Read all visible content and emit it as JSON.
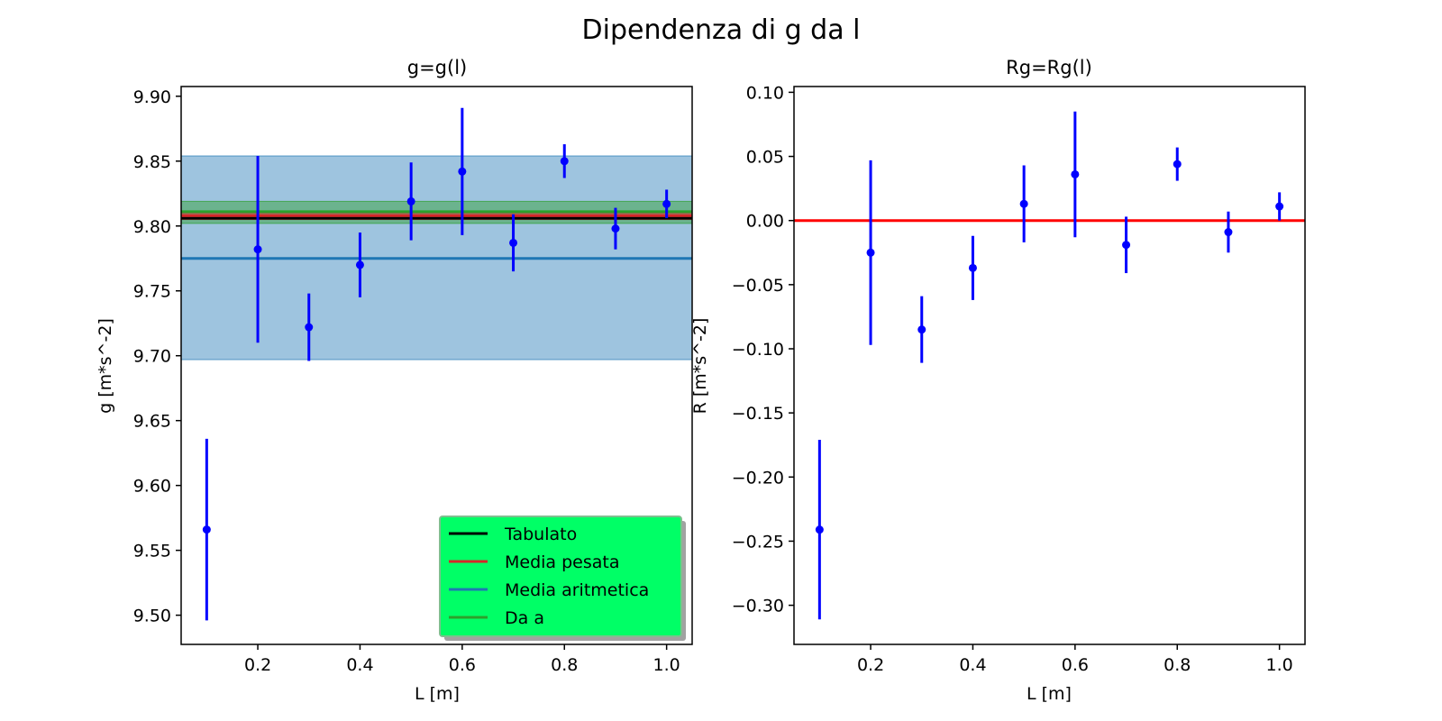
{
  "figure": {
    "title": "Dipendenza di g da l"
  },
  "chart_data": [
    {
      "type": "scatter",
      "title": "g=g(l)",
      "xlabel": "L [m]",
      "ylabel": "g [m*s^-2]",
      "xlim": [
        0.05,
        1.05
      ],
      "ylim": [
        9.4775,
        9.9075
      ],
      "xticks": [
        0.2,
        0.4,
        0.6,
        0.8,
        1.0
      ],
      "xtick_labels": [
        "0.2",
        "0.4",
        "0.6",
        "0.8",
        "1.0"
      ],
      "yticks": [
        9.5,
        9.55,
        9.6,
        9.65,
        9.7,
        9.75,
        9.8,
        9.85,
        9.9
      ],
      "ytick_labels": [
        "9.50",
        "9.55",
        "9.60",
        "9.65",
        "9.70",
        "9.75",
        "9.80",
        "9.85",
        "9.90"
      ],
      "grid": false,
      "legend_position": "lower right",
      "bands": [
        {
          "name": "Media aritmetica",
          "low": 9.697,
          "high": 9.854,
          "color": "#1f77b4",
          "opacity": 0.43
        },
        {
          "name": "Da a",
          "low": 9.802,
          "high": 9.819,
          "color": "#2ca02c",
          "opacity": 0.45
        },
        {
          "name": "Media pesata",
          "low": 9.805,
          "high": 9.81,
          "color": "#d62728",
          "opacity": 0.35
        }
      ],
      "lines": [
        {
          "name": "Tabulato",
          "y": 9.806,
          "color": "#000000"
        },
        {
          "name": "Media pesata",
          "y": 9.808,
          "color": "#d62728"
        },
        {
          "name": "Media aritmetica",
          "y": 9.775,
          "color": "#1f77b4"
        },
        {
          "name": "Da a",
          "y": 9.811,
          "color": "#2ca02c"
        }
      ],
      "series": [
        {
          "color": "#0000ff",
          "x": [
            0.1,
            0.2,
            0.3,
            0.4,
            0.5,
            0.6,
            0.7,
            0.8,
            0.9,
            1.0
          ],
          "y": [
            9.566,
            9.782,
            9.722,
            9.77,
            9.819,
            9.842,
            9.787,
            9.85,
            9.798,
            9.817
          ],
          "yerr": [
            0.07,
            0.072,
            0.026,
            0.025,
            0.03,
            0.049,
            0.022,
            0.013,
            0.016,
            0.011
          ]
        }
      ],
      "legend": [
        {
          "label": "Tabulato",
          "color": "#000000"
        },
        {
          "label": "Media pesata",
          "color": "#d62728"
        },
        {
          "label": "Media aritmetica",
          "color": "#1f77b4"
        },
        {
          "label": "Da a",
          "color": "#2ca02c"
        }
      ],
      "legend_style": {
        "facecolor": "#00ff66",
        "edgecolor": "#7fbf8f",
        "shadow": true
      }
    },
    {
      "type": "scatter",
      "title": "Rg=Rg(l)",
      "xlabel": "L [m]",
      "ylabel": "R [m*s^-2]",
      "xlim": [
        0.05,
        1.05
      ],
      "ylim": [
        -0.3305,
        0.1045
      ],
      "xticks": [
        0.2,
        0.4,
        0.6,
        0.8,
        1.0
      ],
      "xtick_labels": [
        "0.2",
        "0.4",
        "0.6",
        "0.8",
        "1.0"
      ],
      "yticks": [
        -0.3,
        -0.25,
        -0.2,
        -0.15,
        -0.1,
        -0.05,
        0.0,
        0.05,
        0.1
      ],
      "ytick_labels": [
        "−0.30",
        "−0.25",
        "−0.20",
        "−0.15",
        "−0.10",
        "−0.05",
        "0.00",
        "0.05",
        "0.10"
      ],
      "grid": false,
      "lines": [
        {
          "y": 0.0,
          "color": "#ff0000"
        }
      ],
      "series": [
        {
          "color": "#0000ff",
          "x": [
            0.1,
            0.2,
            0.3,
            0.4,
            0.5,
            0.6,
            0.7,
            0.8,
            0.9,
            1.0
          ],
          "y": [
            -0.241,
            -0.025,
            -0.085,
            -0.037,
            0.013,
            0.036,
            -0.019,
            0.044,
            -0.009,
            0.011
          ],
          "yerr": [
            0.07,
            0.072,
            0.026,
            0.025,
            0.03,
            0.049,
            0.022,
            0.013,
            0.016,
            0.011
          ]
        }
      ]
    }
  ]
}
